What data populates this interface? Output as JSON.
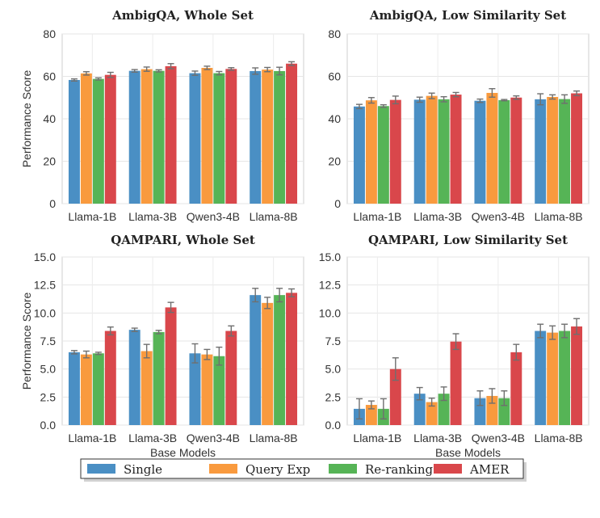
{
  "legend": {
    "items": [
      {
        "name": "Single",
        "color": "#4a8fc4"
      },
      {
        "name": "Query Exp",
        "color": "#f99a3e"
      },
      {
        "name": "Re-ranking",
        "color": "#56b456"
      },
      {
        "name": "AMER",
        "color": "#d9474b"
      }
    ]
  },
  "chart_data": [
    {
      "type": "bar",
      "title": "AmbigQA, Whole Set",
      "xlabel": "",
      "ylabel": "Performance Score",
      "ylim": [
        0,
        80
      ],
      "yticks": [
        0,
        20,
        40,
        60,
        80
      ],
      "ytick_labels": [
        "0",
        "20",
        "40",
        "60",
        "80"
      ],
      "categories": [
        "Llama-1B",
        "Llama-3B",
        "Qwen3-4B",
        "Llama-8B"
      ],
      "series": [
        {
          "name": "Single",
          "values": [
            58.3,
            62.6,
            61.5,
            62.5
          ],
          "errors": [
            0.5,
            0.6,
            1.0,
            1.5
          ]
        },
        {
          "name": "Query Exp",
          "values": [
            61.4,
            63.4,
            64.0,
            63.2
          ],
          "errors": [
            0.8,
            1.0,
            0.8,
            1.0
          ]
        },
        {
          "name": "Re-ranking",
          "values": [
            58.8,
            62.6,
            61.5,
            62.5
          ],
          "errors": [
            0.5,
            0.5,
            0.8,
            1.8
          ]
        },
        {
          "name": "AMER",
          "values": [
            60.7,
            64.8,
            63.5,
            66.0
          ],
          "errors": [
            1.2,
            1.2,
            0.6,
            0.9
          ]
        }
      ]
    },
    {
      "type": "bar",
      "title": "AmbigQA, Low Similarity Set",
      "xlabel": "",
      "ylabel": "",
      "ylim": [
        0,
        80
      ],
      "yticks": [
        0,
        20,
        40,
        60,
        80
      ],
      "ytick_labels": [
        "0",
        "20",
        "40",
        "60",
        "80"
      ],
      "categories": [
        "Llama-1B",
        "Llama-3B",
        "Qwen3-4B",
        "Llama-8B"
      ],
      "series": [
        {
          "name": "Single",
          "values": [
            45.8,
            49.0,
            48.5,
            49.2
          ],
          "errors": [
            1.0,
            1.2,
            0.8,
            2.6
          ]
        },
        {
          "name": "Query Exp",
          "values": [
            48.7,
            50.8,
            52.2,
            50.3
          ],
          "errors": [
            1.3,
            1.3,
            2.0,
            1.0
          ]
        },
        {
          "name": "Re-ranking",
          "values": [
            46.0,
            49.2,
            48.8,
            49.3
          ],
          "errors": [
            0.6,
            1.2,
            0.3,
            2.0
          ]
        },
        {
          "name": "AMER",
          "values": [
            48.9,
            51.4,
            50.0,
            52.0
          ],
          "errors": [
            1.8,
            1.0,
            0.8,
            1.1
          ]
        }
      ]
    },
    {
      "type": "bar",
      "title": "QAMPARI, Whole Set",
      "xlabel": "Base Models",
      "ylabel": "Performance Score",
      "ylim": [
        0,
        15
      ],
      "yticks": [
        0,
        2.5,
        5,
        7.5,
        10,
        12.5,
        15
      ],
      "ytick_labels": [
        "0.0",
        "2.5",
        "5.0",
        "7.5",
        "10.0",
        "12.5",
        "15.0"
      ],
      "categories": [
        "Llama-1B",
        "Llama-3B",
        "Qwen3-4B",
        "Llama-8B"
      ],
      "series": [
        {
          "name": "Single",
          "values": [
            6.5,
            8.5,
            6.4,
            11.6
          ],
          "errors": [
            0.15,
            0.15,
            0.85,
            0.6
          ]
        },
        {
          "name": "Query Exp",
          "values": [
            6.3,
            6.6,
            6.3,
            10.9
          ],
          "errors": [
            0.3,
            0.6,
            0.45,
            0.5
          ]
        },
        {
          "name": "Re-ranking",
          "values": [
            6.4,
            8.3,
            6.15,
            11.6
          ],
          "errors": [
            0.1,
            0.15,
            0.8,
            0.6
          ]
        },
        {
          "name": "AMER",
          "values": [
            8.4,
            10.5,
            8.4,
            11.8
          ],
          "errors": [
            0.35,
            0.45,
            0.45,
            0.35
          ]
        }
      ]
    },
    {
      "type": "bar",
      "title": "QAMPARI, Low Similarity Set",
      "xlabel": "Base Models",
      "ylabel": "",
      "ylim": [
        0,
        15
      ],
      "yticks": [
        0,
        2.5,
        5,
        7.5,
        10,
        12.5,
        15
      ],
      "ytick_labels": [
        "0.0",
        "2.5",
        "5.0",
        "7.5",
        "10.0",
        "12.5",
        "15.0"
      ],
      "categories": [
        "Llama-1B",
        "Llama-3B",
        "Qwen3-4B",
        "Llama-8B"
      ],
      "series": [
        {
          "name": "Single",
          "values": [
            1.45,
            2.8,
            2.4,
            8.4
          ],
          "errors": [
            0.9,
            0.55,
            0.65,
            0.6
          ]
        },
        {
          "name": "Query Exp",
          "values": [
            1.8,
            2.05,
            2.6,
            8.25
          ],
          "errors": [
            0.35,
            0.35,
            0.65,
            0.6
          ]
        },
        {
          "name": "Re-ranking",
          "values": [
            1.45,
            2.8,
            2.4,
            8.4
          ],
          "errors": [
            0.9,
            0.6,
            0.65,
            0.6
          ]
        },
        {
          "name": "AMER",
          "values": [
            5.0,
            7.45,
            6.5,
            8.8
          ],
          "errors": [
            1.0,
            0.7,
            0.7,
            0.7
          ]
        }
      ]
    }
  ]
}
